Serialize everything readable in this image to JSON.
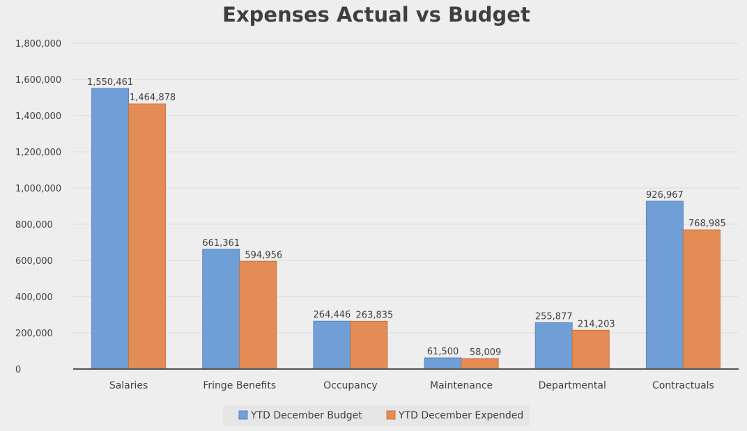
{
  "chart_data": {
    "type": "bar",
    "title": "Expenses Actual vs Budget",
    "categories": [
      "Salaries",
      "Fringe Benefits",
      "Occupancy",
      "Maintenance",
      "Departmental",
      "Contractuals"
    ],
    "series": [
      {
        "name": "YTD December Budget",
        "color": "#6f9fd6",
        "values": [
          1550461,
          661361,
          264446,
          61500,
          255877,
          926967
        ],
        "labels": [
          "1,550,461",
          "661,361",
          "264,446",
          "61,500",
          "255,877",
          "926,967"
        ]
      },
      {
        "name": "YTD December Expended",
        "color": "#e38c55",
        "values": [
          1464878,
          594956,
          263835,
          58009,
          214203,
          768985
        ],
        "labels": [
          "1,464,878",
          "594,956",
          "263,835",
          "58,009",
          "214,203",
          "768,985"
        ]
      }
    ],
    "ylim": [
      0,
      1800000
    ],
    "yticks": [
      "0",
      "200,000",
      "400,000",
      "600,000",
      "800,000",
      "1,000,000",
      "1,200,000",
      "1,400,000",
      "1,600,000",
      "1,800,000"
    ],
    "grid": true,
    "legend": "bottom",
    "xlabel": "",
    "ylabel": ""
  }
}
